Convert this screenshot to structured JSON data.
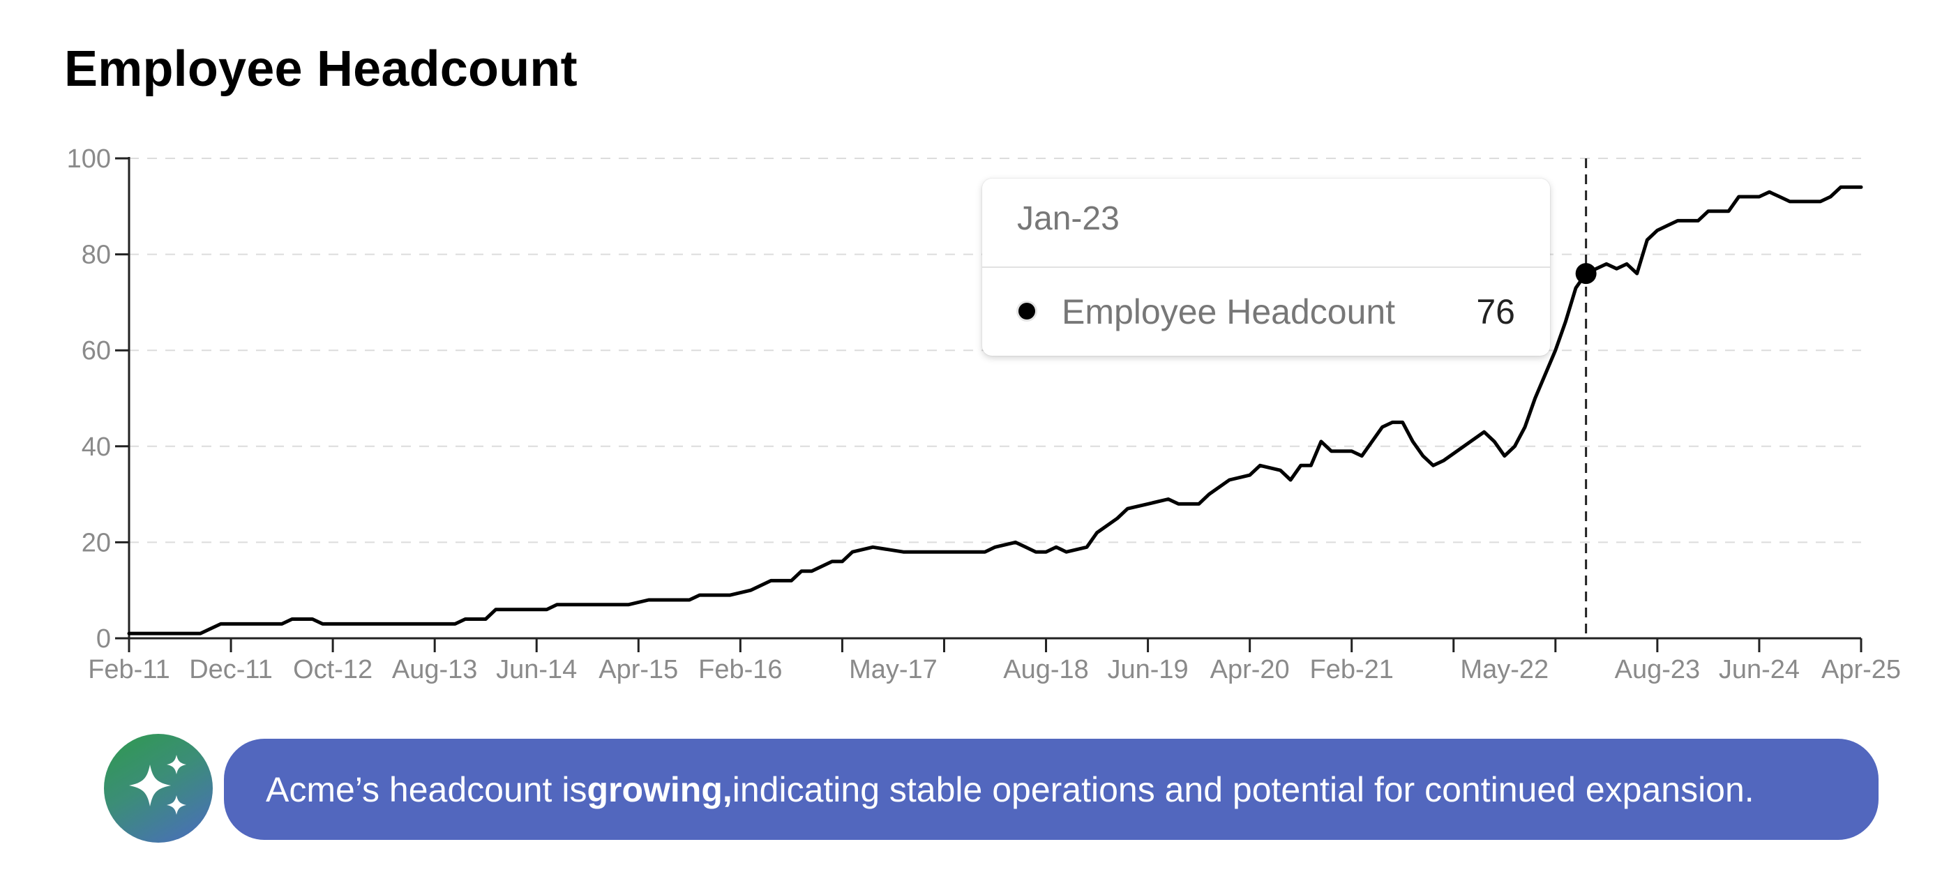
{
  "page": {
    "title": "Employee Headcount"
  },
  "tooltip": {
    "date": "Jan-23",
    "series_name": "Employee Headcount",
    "value": "76"
  },
  "insight": {
    "prefix": "Acme’s headcount is ",
    "emphasis": "growing,",
    "suffix": " indicating stable operations and potential for continued expansion.",
    "icon": "sparkles-icon"
  },
  "colors": {
    "line": "#000000",
    "banner": "#5267be",
    "avatar_gradient": [
      "#2f9a4e",
      "#4b6cc0"
    ]
  },
  "chart_data": {
    "type": "line",
    "title": "Employee Headcount",
    "xlabel": "",
    "ylabel": "",
    "ylim": [
      0,
      100
    ],
    "y_ticks": [
      0,
      20,
      40,
      60,
      80,
      100
    ],
    "grid": true,
    "x_tick_labels": [
      "Feb-11",
      "Dec-11",
      "Oct-12",
      "Aug-13",
      "Jun-14",
      "Apr-15",
      "Feb-16",
      "May-17",
      "Aug-18",
      "Jun-19",
      "Apr-20",
      "Feb-21",
      "May-22",
      "Aug-23",
      "Jun-24",
      "Apr-25"
    ],
    "highlight": {
      "x": "Jan-23",
      "y": 76
    },
    "series": [
      {
        "values": [
          [
            "2011-02",
            1
          ],
          [
            "2011-06",
            1
          ],
          [
            "2011-09",
            1
          ],
          [
            "2011-10",
            2
          ],
          [
            "2011-11",
            3
          ],
          [
            "2012-02",
            3
          ],
          [
            "2012-05",
            3
          ],
          [
            "2012-06",
            4
          ],
          [
            "2012-08",
            4
          ],
          [
            "2012-09",
            3
          ],
          [
            "2013-02",
            3
          ],
          [
            "2013-06",
            3
          ],
          [
            "2013-10",
            3
          ],
          [
            "2013-11",
            4
          ],
          [
            "2014-01",
            4
          ],
          [
            "2014-02",
            6
          ],
          [
            "2014-07",
            6
          ],
          [
            "2014-08",
            7
          ],
          [
            "2015-03",
            7
          ],
          [
            "2015-05",
            8
          ],
          [
            "2015-09",
            8
          ],
          [
            "2015-10",
            9
          ],
          [
            "2016-01",
            9
          ],
          [
            "2016-03",
            10
          ],
          [
            "2016-05",
            12
          ],
          [
            "2016-07",
            12
          ],
          [
            "2016-08",
            14
          ],
          [
            "2016-09",
            14
          ],
          [
            "2016-11",
            16
          ],
          [
            "2016-12",
            16
          ],
          [
            "2017-01",
            18
          ],
          [
            "2017-03",
            19
          ],
          [
            "2017-06",
            18
          ],
          [
            "2017-09",
            18
          ],
          [
            "2017-12",
            18
          ],
          [
            "2018-02",
            18
          ],
          [
            "2018-03",
            19
          ],
          [
            "2018-05",
            20
          ],
          [
            "2018-06",
            19
          ],
          [
            "2018-07",
            18
          ],
          [
            "2018-08",
            18
          ],
          [
            "2018-09",
            19
          ],
          [
            "2018-10",
            18
          ],
          [
            "2018-12",
            19
          ],
          [
            "2019-01",
            22
          ],
          [
            "2019-03",
            25
          ],
          [
            "2019-04",
            27
          ],
          [
            "2019-06",
            28
          ],
          [
            "2019-08",
            29
          ],
          [
            "2019-09",
            28
          ],
          [
            "2019-11",
            28
          ],
          [
            "2019-12",
            30
          ],
          [
            "2020-02",
            33
          ],
          [
            "2020-04",
            34
          ],
          [
            "2020-05",
            36
          ],
          [
            "2020-07",
            35
          ],
          [
            "2020-08",
            33
          ],
          [
            "2020-09",
            36
          ],
          [
            "2020-10",
            36
          ],
          [
            "2020-11",
            41
          ],
          [
            "2020-12",
            39
          ],
          [
            "2021-02",
            39
          ],
          [
            "2021-03",
            38
          ],
          [
            "2021-04",
            41
          ],
          [
            "2021-05",
            44
          ],
          [
            "2021-06",
            45
          ],
          [
            "2021-07",
            45
          ],
          [
            "2021-08",
            41
          ],
          [
            "2021-09",
            38
          ],
          [
            "2021-10",
            36
          ],
          [
            "2021-11",
            37
          ],
          [
            "2022-01",
            40
          ],
          [
            "2022-03",
            43
          ],
          [
            "2022-04",
            41
          ],
          [
            "2022-05",
            38
          ],
          [
            "2022-06",
            40
          ],
          [
            "2022-07",
            44
          ],
          [
            "2022-08",
            50
          ],
          [
            "2022-09",
            55
          ],
          [
            "2022-10",
            60
          ],
          [
            "2022-11",
            66
          ],
          [
            "2022-12",
            73
          ],
          [
            "2023-01",
            76
          ],
          [
            "2023-03",
            78
          ],
          [
            "2023-04",
            77
          ],
          [
            "2023-05",
            78
          ],
          [
            "2023-06",
            76
          ],
          [
            "2023-07",
            83
          ],
          [
            "2023-08",
            85
          ],
          [
            "2023-09",
            86
          ],
          [
            "2023-10",
            87
          ],
          [
            "2023-12",
            87
          ],
          [
            "2024-01",
            89
          ],
          [
            "2024-03",
            89
          ],
          [
            "2024-04",
            92
          ],
          [
            "2024-06",
            92
          ],
          [
            "2024-07",
            93
          ],
          [
            "2024-08",
            92
          ],
          [
            "2024-09",
            91
          ],
          [
            "2024-12",
            91
          ],
          [
            "2025-01",
            92
          ],
          [
            "2025-02",
            94
          ],
          [
            "2025-04",
            94
          ]
        ]
      }
    ]
  }
}
